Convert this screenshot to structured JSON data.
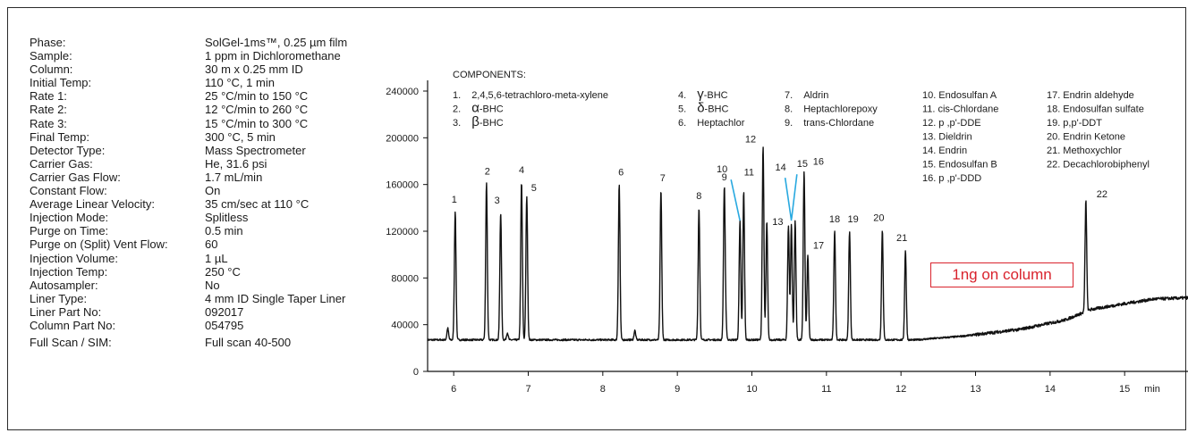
{
  "method_parameters": [
    {
      "label": "Phase:",
      "value": "SolGel-1ms™, 0.25 µm film"
    },
    {
      "label": "Sample:",
      "value": "1 ppm in Dichloromethane"
    },
    {
      "label": "Column:",
      "value": "30 m x 0.25 mm ID"
    },
    {
      "label": "Initial Temp:",
      "value": "110 °C, 1 min"
    },
    {
      "label": "Rate 1:",
      "value": "25 °C/min to 150 °C"
    },
    {
      "label": "Rate 2:",
      "value": "12 °C/min to 260 °C"
    },
    {
      "label": "Rate 3:",
      "value": "15 °C/min to 300 °C"
    },
    {
      "label": "Final Temp:",
      "value": "300 °C, 5 min"
    },
    {
      "label": "Detector Type:",
      "value": "Mass Spectrometer"
    },
    {
      "label": "Carrier Gas:",
      "value": "He, 31.6 psi"
    },
    {
      "label": "Carrier Gas Flow:",
      "value": "1.7 mL/min"
    },
    {
      "label": "Constant Flow:",
      "value": "On"
    },
    {
      "label": "Average Linear Velocity:",
      "value": "35 cm/sec at 110 °C"
    },
    {
      "label": "Injection Mode:",
      "value": "Splitless"
    },
    {
      "label": "Purge on Time:",
      "value": "0.5 min"
    },
    {
      "label": "Purge on (Split) Vent Flow:",
      "value": "60"
    },
    {
      "label": "Injection Volume:",
      "value": "1 µL"
    },
    {
      "label": "Injection Temp:",
      "value": "250 °C"
    },
    {
      "label": "Autosampler:",
      "value": "No"
    },
    {
      "label": "Liner Type:",
      "value": "4 mm ID Single Taper Liner"
    },
    {
      "label": "Liner Part No:",
      "value": "092017"
    },
    {
      "label": "Column Part No:",
      "value": "054795"
    },
    {
      "label": "Full Scan / SIM:",
      "value": "Full scan 40-500"
    }
  ],
  "components_title": "COMPONENTS:",
  "components": [
    {
      "label": "1.",
      "name": "2,4,5,6-tetrachloro-meta-xylene"
    },
    {
      "label": "2.",
      "greek": "α",
      "name": "-BHC"
    },
    {
      "label": "3.",
      "greek": "β",
      "name": "-BHC"
    },
    {
      "label": "4.",
      "greek": "γ",
      "name": "-BHC"
    },
    {
      "label": "5.",
      "greek": "δ",
      "name": "-BHC"
    },
    {
      "label": "6.",
      "name": "Heptachlor"
    },
    {
      "label": "7.",
      "name": "Aldrin"
    },
    {
      "label": "8.",
      "name": "Heptachlorepoxy"
    },
    {
      "label": "9.",
      "name": "trans-Chlordane"
    },
    {
      "label": "10.",
      "name": "Endosulfan A"
    },
    {
      "label": "11.",
      "name": "cis-Chlordane"
    },
    {
      "label": "12.",
      "name": "p ,p'-DDE"
    },
    {
      "label": "13.",
      "name": "Dieldrin"
    },
    {
      "label": "14.",
      "name": "Endrin"
    },
    {
      "label": "15.",
      "name": "Endosulfan B"
    },
    {
      "label": "16.",
      "name": "p ,p'-DDD"
    },
    {
      "label": "17.",
      "name": "Endrin aldehyde"
    },
    {
      "label": "18.",
      "name": "Endosulfan sulfate"
    },
    {
      "label": "19.",
      "name": "p,p'-DDT"
    },
    {
      "label": "20.",
      "name": "Endrin Ketone"
    },
    {
      "label": "21.",
      "name": "Methoxychlor"
    },
    {
      "label": "22.",
      "name": "Decachlorobiphenyl"
    }
  ],
  "annotation": "1ng on column",
  "chart_data": {
    "type": "line",
    "title": "",
    "xlabel": "min",
    "ylabel": "",
    "xlim": [
      5.65,
      15.85
    ],
    "ylim": [
      0,
      240000
    ],
    "x_ticks": [
      6,
      7,
      8,
      9,
      10,
      11,
      12,
      13,
      14,
      15
    ],
    "y_ticks": [
      0,
      40000,
      80000,
      120000,
      160000,
      200000,
      240000
    ],
    "grid": false,
    "colors": {
      "trace": "#111111",
      "leader": "#29a9e0",
      "annotation": "#d9232d"
    },
    "baseline": {
      "x": [
        5.65,
        12.2,
        12.8,
        13.6,
        14.2,
        14.55,
        15.0,
        15.4,
        15.85
      ],
      "y": [
        27000,
        27000,
        30000,
        36000,
        44000,
        53000,
        58000,
        62000,
        63000
      ]
    },
    "peaks": [
      {
        "label": "1",
        "rt": 6.02,
        "height": 137000
      },
      {
        "label": "2",
        "rt": 6.44,
        "height": 161000
      },
      {
        "label": "3",
        "rt": 6.63,
        "height": 136000
      },
      {
        "label": "4",
        "rt": 6.91,
        "height": 162000
      },
      {
        "label": "5",
        "rt": 6.98,
        "height": 150000
      },
      {
        "label": "6",
        "rt": 8.22,
        "height": 160000
      },
      {
        "label": "7",
        "rt": 8.78,
        "height": 155000
      },
      {
        "label": "8",
        "rt": 9.29,
        "height": 140000
      },
      {
        "label": "9",
        "rt": 9.63,
        "height": 156000
      },
      {
        "label": "10",
        "rt": 9.84,
        "height": 129000
      },
      {
        "label": "11",
        "rt": 9.89,
        "height": 154000
      },
      {
        "label": "12",
        "rt": 10.15,
        "height": 193000
      },
      {
        "label": "13",
        "rt": 10.49,
        "height": 124000
      },
      {
        "label": "14",
        "rt": 10.53,
        "height": 126000
      },
      {
        "label": "15",
        "rt": 10.58,
        "height": 129000
      },
      {
        "label": "16",
        "rt": 10.7,
        "height": 171000
      },
      {
        "label": "17",
        "rt": 10.75,
        "height": 99000
      },
      {
        "label": "18",
        "rt": 11.11,
        "height": 120000
      },
      {
        "label": "19",
        "rt": 11.31,
        "height": 120000
      },
      {
        "label": "20",
        "rt": 11.75,
        "height": 121000
      },
      {
        "label": "21",
        "rt": 12.06,
        "height": 104000
      },
      {
        "label": "22",
        "rt": 14.48,
        "height": 146000
      }
    ]
  }
}
